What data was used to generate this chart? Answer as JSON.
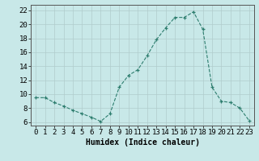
{
  "x": [
    0,
    1,
    2,
    3,
    4,
    5,
    6,
    7,
    8,
    9,
    10,
    11,
    12,
    13,
    14,
    15,
    16,
    17,
    18,
    19,
    20,
    21,
    22,
    23
  ],
  "y": [
    9.5,
    9.5,
    8.8,
    8.3,
    7.7,
    7.2,
    6.7,
    6.1,
    7.2,
    11.0,
    12.7,
    13.5,
    15.5,
    17.8,
    19.5,
    21.0,
    21.0,
    21.8,
    19.3,
    11.0,
    9.0,
    8.8,
    8.0,
    6.2
  ],
  "line_color": "#2d7d6e",
  "marker_color": "#2d7d6e",
  "bg_color": "#c8e8e8",
  "grid_color": "#b0cccc",
  "xlabel": "Humidex (Indice chaleur)",
  "xlim": [
    -0.5,
    23.5
  ],
  "ylim": [
    5.5,
    22.8
  ],
  "yticks": [
    6,
    8,
    10,
    12,
    14,
    16,
    18,
    20,
    22
  ],
  "xtick_labels": [
    "0",
    "1",
    "2",
    "3",
    "4",
    "5",
    "6",
    "7",
    "8",
    "9",
    "10",
    "11",
    "12",
    "13",
    "14",
    "15",
    "16",
    "17",
    "18",
    "19",
    "20",
    "21",
    "22",
    "23"
  ],
  "xlabel_fontsize": 7,
  "tick_fontsize": 6.5
}
